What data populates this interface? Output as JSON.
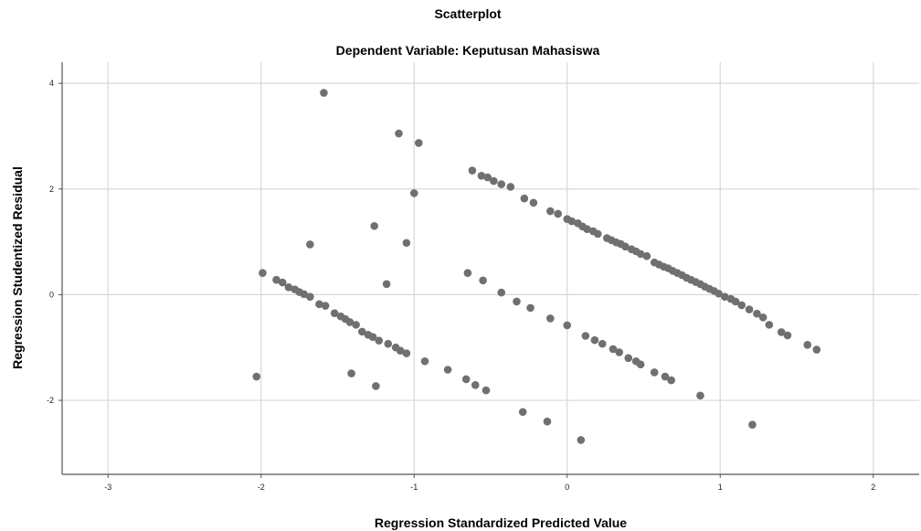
{
  "chart_data": {
    "type": "scatter",
    "title": "Scatterplot",
    "subtitle": "Dependent Variable: Keputusan Mahasiswa",
    "xlabel": "Regression Standardized Predicted Value",
    "ylabel": "Regression Studentized Residual",
    "xlim": [
      -3.3,
      2.3
    ],
    "ylim": [
      -3.4,
      4.4
    ],
    "x_ticks": [
      -3,
      -2,
      -1,
      0,
      1,
      2
    ],
    "y_ticks": [
      -2,
      0,
      2,
      4
    ],
    "x_tick_labels": [
      "-3",
      "-2",
      "-1",
      "0",
      "1",
      "2"
    ],
    "y_tick_labels": [
      "-2",
      "0",
      "2",
      "4"
    ],
    "grid": true,
    "colors": {
      "marker": "#707070",
      "grid": "#d8d8d8",
      "axis": "#555555"
    },
    "points": [
      [
        -1.59,
        3.82
      ],
      [
        -1.1,
        3.05
      ],
      [
        -0.97,
        2.87
      ],
      [
        -1.0,
        1.92
      ],
      [
        -1.26,
        1.3
      ],
      [
        -1.68,
        0.95
      ],
      [
        -1.05,
        0.98
      ],
      [
        -1.18,
        0.2
      ],
      [
        -2.03,
        -1.55
      ],
      [
        -1.41,
        -1.49
      ],
      [
        -1.25,
        -1.73
      ],
      [
        -1.99,
        0.41
      ],
      [
        -1.9,
        0.28
      ],
      [
        -1.86,
        0.23
      ],
      [
        -1.82,
        0.14
      ],
      [
        -1.78,
        0.1
      ],
      [
        -1.75,
        0.05
      ],
      [
        -1.72,
        0.01
      ],
      [
        -1.68,
        -0.04
      ],
      [
        -1.62,
        -0.18
      ],
      [
        -1.58,
        -0.21
      ],
      [
        -1.52,
        -0.35
      ],
      [
        -1.48,
        -0.41
      ],
      [
        -1.45,
        -0.46
      ],
      [
        -1.42,
        -0.52
      ],
      [
        -1.38,
        -0.57
      ],
      [
        -1.34,
        -0.7
      ],
      [
        -1.3,
        -0.76
      ],
      [
        -1.27,
        -0.8
      ],
      [
        -1.23,
        -0.87
      ],
      [
        -1.17,
        -0.93
      ],
      [
        -1.12,
        -1.0
      ],
      [
        -1.09,
        -1.06
      ],
      [
        -1.05,
        -1.11
      ],
      [
        -0.93,
        -1.26
      ],
      [
        -0.78,
        -1.42
      ],
      [
        -0.66,
        -1.6
      ],
      [
        -0.6,
        -1.71
      ],
      [
        -0.53,
        -1.81
      ],
      [
        -0.29,
        -2.22
      ],
      [
        -0.13,
        -2.4
      ],
      [
        0.09,
        -2.75
      ],
      [
        -0.65,
        0.41
      ],
      [
        -0.55,
        0.27
      ],
      [
        -0.43,
        0.04
      ],
      [
        -0.33,
        -0.13
      ],
      [
        -0.24,
        -0.25
      ],
      [
        -0.11,
        -0.45
      ],
      [
        0.0,
        -0.58
      ],
      [
        0.12,
        -0.78
      ],
      [
        0.18,
        -0.86
      ],
      [
        0.23,
        -0.93
      ],
      [
        0.3,
        -1.03
      ],
      [
        0.34,
        -1.09
      ],
      [
        0.4,
        -1.2
      ],
      [
        0.45,
        -1.26
      ],
      [
        0.48,
        -1.32
      ],
      [
        0.57,
        -1.47
      ],
      [
        0.64,
        -1.55
      ],
      [
        0.68,
        -1.62
      ],
      [
        0.87,
        -1.91
      ],
      [
        1.21,
        -2.46
      ],
      [
        -0.62,
        2.35
      ],
      [
        -0.56,
        2.25
      ],
      [
        -0.52,
        2.22
      ],
      [
        -0.48,
        2.15
      ],
      [
        -0.43,
        2.09
      ],
      [
        -0.37,
        2.04
      ],
      [
        -0.28,
        1.82
      ],
      [
        -0.22,
        1.74
      ],
      [
        -0.11,
        1.58
      ],
      [
        -0.06,
        1.53
      ],
      [
        0.0,
        1.43
      ],
      [
        0.03,
        1.39
      ],
      [
        0.07,
        1.35
      ],
      [
        0.1,
        1.29
      ],
      [
        0.13,
        1.24
      ],
      [
        0.17,
        1.2
      ],
      [
        0.2,
        1.15
      ],
      [
        0.26,
        1.07
      ],
      [
        0.29,
        1.03
      ],
      [
        0.32,
        0.99
      ],
      [
        0.35,
        0.96
      ],
      [
        0.38,
        0.91
      ],
      [
        0.42,
        0.86
      ],
      [
        0.45,
        0.82
      ],
      [
        0.48,
        0.77
      ],
      [
        0.52,
        0.73
      ],
      [
        0.57,
        0.61
      ],
      [
        0.6,
        0.57
      ],
      [
        0.63,
        0.53
      ],
      [
        0.66,
        0.5
      ],
      [
        0.69,
        0.45
      ],
      [
        0.72,
        0.41
      ],
      [
        0.75,
        0.37
      ],
      [
        0.78,
        0.32
      ],
      [
        0.81,
        0.28
      ],
      [
        0.84,
        0.24
      ],
      [
        0.87,
        0.2
      ],
      [
        0.9,
        0.15
      ],
      [
        0.93,
        0.11
      ],
      [
        0.96,
        0.07
      ],
      [
        0.99,
        0.02
      ],
      [
        1.03,
        -0.04
      ],
      [
        1.07,
        -0.08
      ],
      [
        1.1,
        -0.13
      ],
      [
        1.14,
        -0.2
      ],
      [
        1.19,
        -0.28
      ],
      [
        1.24,
        -0.36
      ],
      [
        1.28,
        -0.43
      ],
      [
        1.32,
        -0.57
      ],
      [
        1.4,
        -0.71
      ],
      [
        1.44,
        -0.77
      ],
      [
        1.57,
        -0.95
      ],
      [
        1.63,
        -1.04
      ]
    ]
  }
}
